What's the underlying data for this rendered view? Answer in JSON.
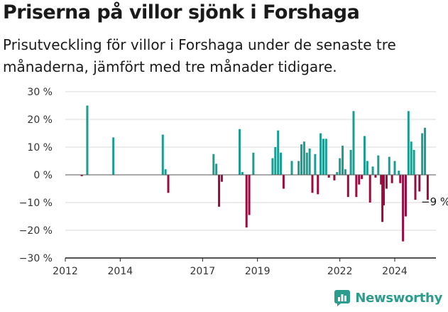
{
  "title": "Priserna på villor sjönk i Forshaga",
  "subtitle": "Prisutveckling för villor i Forshaga under de senaste tre månaderna, jämfört med tre månader tidigare.",
  "brand": {
    "name": "Newsworthy",
    "icon": "newsworthy-logo-icon"
  },
  "colors": {
    "positive": "#1a9e92",
    "negative": "#9b0b40",
    "axis": "#1a1a1a",
    "grid": "#d9d9d9",
    "brand": "#2c9c8c"
  },
  "chart_data": {
    "type": "bar",
    "xlabel": "",
    "ylabel": "",
    "ylim": [
      -30,
      30
    ],
    "xlim": [
      2012,
      2025.5
    ],
    "y_ticks": [
      30,
      20,
      10,
      0,
      -10,
      -20,
      -30
    ],
    "y_tick_labels": [
      "30 %",
      "20 %",
      "10 %",
      "0 %",
      "−10 %",
      "−20 %",
      "−30 %"
    ],
    "x_ticks": [
      2012,
      2014,
      2017,
      2019,
      2022,
      2024
    ],
    "x_tick_labels": [
      "2012",
      "2014",
      "2017",
      "2019",
      "2022",
      "2024"
    ],
    "grid": "horizontal",
    "annotation": {
      "text": "−9 %",
      "x": 2024.75,
      "y": -9
    },
    "series": [
      {
        "values": [
          {
            "x": 2012.6,
            "y": -0.5
          },
          {
            "x": 2012.8,
            "y": 25
          },
          {
            "x": 2013.75,
            "y": 13.5
          },
          {
            "x": 2015.55,
            "y": 14.5
          },
          {
            "x": 2015.65,
            "y": 2
          },
          {
            "x": 2015.75,
            "y": -6.5
          },
          {
            "x": 2017.4,
            "y": 7.5
          },
          {
            "x": 2017.5,
            "y": 4
          },
          {
            "x": 2017.6,
            "y": -11.5
          },
          {
            "x": 2017.7,
            "y": -2.5
          },
          {
            "x": 2018.35,
            "y": 16.5
          },
          {
            "x": 2018.45,
            "y": 1
          },
          {
            "x": 2018.6,
            "y": -19
          },
          {
            "x": 2018.7,
            "y": -14.5
          },
          {
            "x": 2018.85,
            "y": 8
          },
          {
            "x": 2019.55,
            "y": 6
          },
          {
            "x": 2019.65,
            "y": 10
          },
          {
            "x": 2019.75,
            "y": 16
          },
          {
            "x": 2019.85,
            "y": 8
          },
          {
            "x": 2019.95,
            "y": -5
          },
          {
            "x": 2020.25,
            "y": 5
          },
          {
            "x": 2020.5,
            "y": 5
          },
          {
            "x": 2020.6,
            "y": 11
          },
          {
            "x": 2020.7,
            "y": 12
          },
          {
            "x": 2020.8,
            "y": 8
          },
          {
            "x": 2020.9,
            "y": 9.5
          },
          {
            "x": 2021.0,
            "y": -6.5
          },
          {
            "x": 2021.1,
            "y": 7.5
          },
          {
            "x": 2021.2,
            "y": -7
          },
          {
            "x": 2021.3,
            "y": 15
          },
          {
            "x": 2021.4,
            "y": 13
          },
          {
            "x": 2021.5,
            "y": 13
          },
          {
            "x": 2021.6,
            "y": -1
          },
          {
            "x": 2021.8,
            "y": -2
          },
          {
            "x": 2021.9,
            "y": 1
          },
          {
            "x": 2022.0,
            "y": 6
          },
          {
            "x": 2022.1,
            "y": 10.5
          },
          {
            "x": 2022.2,
            "y": 2
          },
          {
            "x": 2022.3,
            "y": -8
          },
          {
            "x": 2022.4,
            "y": 9
          },
          {
            "x": 2022.5,
            "y": 23
          },
          {
            "x": 2022.6,
            "y": -8
          },
          {
            "x": 2022.7,
            "y": -3.5
          },
          {
            "x": 2022.8,
            "y": -1.5
          },
          {
            "x": 2022.9,
            "y": 14
          },
          {
            "x": 2023.0,
            "y": 5
          },
          {
            "x": 2023.1,
            "y": -10
          },
          {
            "x": 2023.2,
            "y": 3
          },
          {
            "x": 2023.3,
            "y": -1
          },
          {
            "x": 2023.4,
            "y": 7
          },
          {
            "x": 2023.5,
            "y": -3.5
          },
          {
            "x": 2023.55,
            "y": -17
          },
          {
            "x": 2023.6,
            "y": -11
          },
          {
            "x": 2023.7,
            "y": -5
          },
          {
            "x": 2023.8,
            "y": 6.5
          },
          {
            "x": 2023.9,
            "y": -3
          },
          {
            "x": 2024.0,
            "y": 5
          },
          {
            "x": 2024.15,
            "y": 1.5
          },
          {
            "x": 2024.2,
            "y": -3
          },
          {
            "x": 2024.3,
            "y": -24
          },
          {
            "x": 2024.4,
            "y": -15
          },
          {
            "x": 2024.5,
            "y": 23
          },
          {
            "x": 2024.6,
            "y": 12
          },
          {
            "x": 2024.7,
            "y": 9
          },
          {
            "x": 2024.75,
            "y": -9
          },
          {
            "x": 2024.9,
            "y": -6
          },
          {
            "x": 2025.0,
            "y": 15
          },
          {
            "x": 2025.1,
            "y": 17
          },
          {
            "x": 2025.2,
            "y": -9
          }
        ]
      }
    ]
  }
}
